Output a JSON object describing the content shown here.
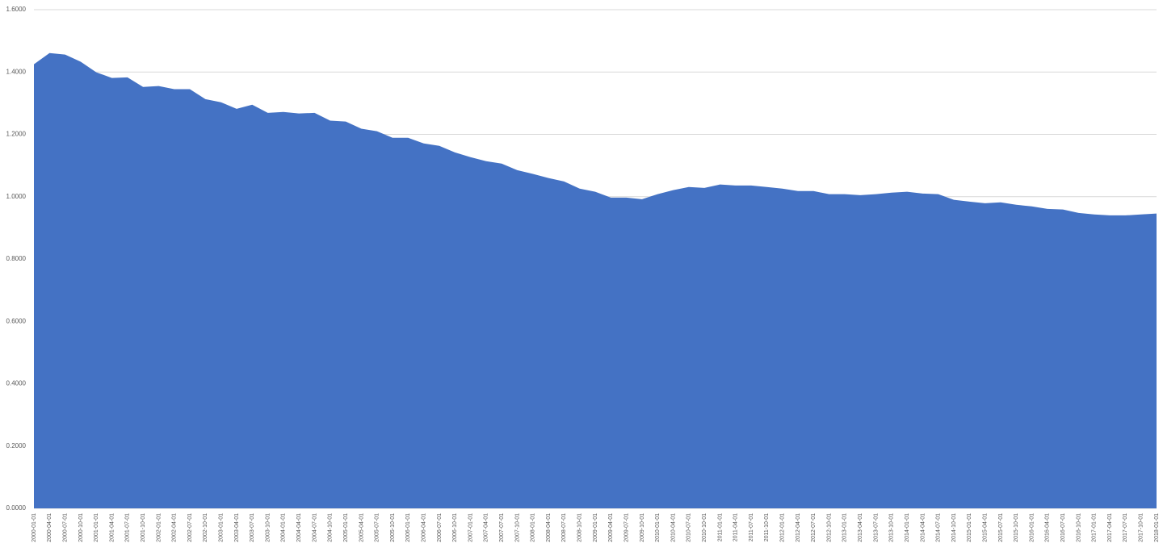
{
  "chart_data": {
    "type": "area",
    "color": "#4472c4",
    "grid": true,
    "categories": [
      "2000-01-01",
      "2000-04-01",
      "2000-07-01",
      "2000-10-01",
      "2001-01-01",
      "2001-04-01",
      "2001-07-01",
      "2001-10-01",
      "2002-01-01",
      "2002-04-01",
      "2002-07-01",
      "2002-10-01",
      "2003-01-01",
      "2003-04-01",
      "2003-07-01",
      "2003-10-01",
      "2004-01-01",
      "2004-04-01",
      "2004-07-01",
      "2004-10-01",
      "2005-01-01",
      "2005-04-01",
      "2005-07-01",
      "2005-10-01",
      "2006-01-01",
      "2006-04-01",
      "2006-07-01",
      "2006-10-01",
      "2007-01-01",
      "2007-04-01",
      "2007-07-01",
      "2007-10-01",
      "2008-01-01",
      "2008-04-01",
      "2008-07-01",
      "2008-10-01",
      "2009-01-01",
      "2009-04-01",
      "2009-07-01",
      "2009-10-01",
      "2010-01-01",
      "2010-04-01",
      "2010-07-01",
      "2010-10-01",
      "2011-01-01",
      "2011-04-01",
      "2011-07-01",
      "2011-10-01",
      "2012-01-01",
      "2012-04-01",
      "2012-07-01",
      "2012-10-01",
      "2013-01-01",
      "2013-04-01",
      "2013-07-01",
      "2013-10-01",
      "2014-01-01",
      "2014-04-01",
      "2014-07-01",
      "2014-10-01",
      "2015-01-01",
      "2015-04-01",
      "2015-07-01",
      "2015-10-01",
      "2016-01-01",
      "2016-04-01",
      "2016-07-01",
      "2016-10-01",
      "2017-01-01",
      "2017-04-01",
      "2017-07-01",
      "2017-10-01",
      "2018-01-01"
    ],
    "values": [
      1.425,
      1.461,
      1.456,
      1.433,
      1.399,
      1.381,
      1.383,
      1.352,
      1.355,
      1.345,
      1.345,
      1.313,
      1.303,
      1.282,
      1.295,
      1.269,
      1.272,
      1.267,
      1.269,
      1.244,
      1.241,
      1.218,
      1.21,
      1.189,
      1.189,
      1.171,
      1.163,
      1.142,
      1.127,
      1.114,
      1.106,
      1.085,
      1.073,
      1.06,
      1.049,
      1.026,
      1.016,
      0.997,
      0.997,
      0.992,
      1.008,
      1.021,
      1.031,
      1.028,
      1.039,
      1.036,
      1.036,
      1.031,
      1.026,
      1.018,
      1.018,
      1.008,
      1.008,
      1.005,
      1.008,
      1.013,
      1.016,
      1.01,
      1.008,
      0.99,
      0.984,
      0.979,
      0.982,
      0.974,
      0.969,
      0.961,
      0.959,
      0.948,
      0.943,
      0.94,
      0.94,
      0.943,
      0.946
    ],
    "ylim": [
      0,
      1.6
    ],
    "yticks": [
      {
        "value": 0,
        "label": "0.0000"
      },
      {
        "value": 0.2,
        "label": "0.2000"
      },
      {
        "value": 0.4,
        "label": "0.4000"
      },
      {
        "value": 0.6,
        "label": "0.6000"
      },
      {
        "value": 0.8,
        "label": "0.8000"
      },
      {
        "value": 1.0,
        "label": "1.0000"
      },
      {
        "value": 1.2,
        "label": "1.2000"
      },
      {
        "value": 1.4,
        "label": "1.4000"
      },
      {
        "value": 1.6,
        "label": "1.6000"
      }
    ]
  }
}
